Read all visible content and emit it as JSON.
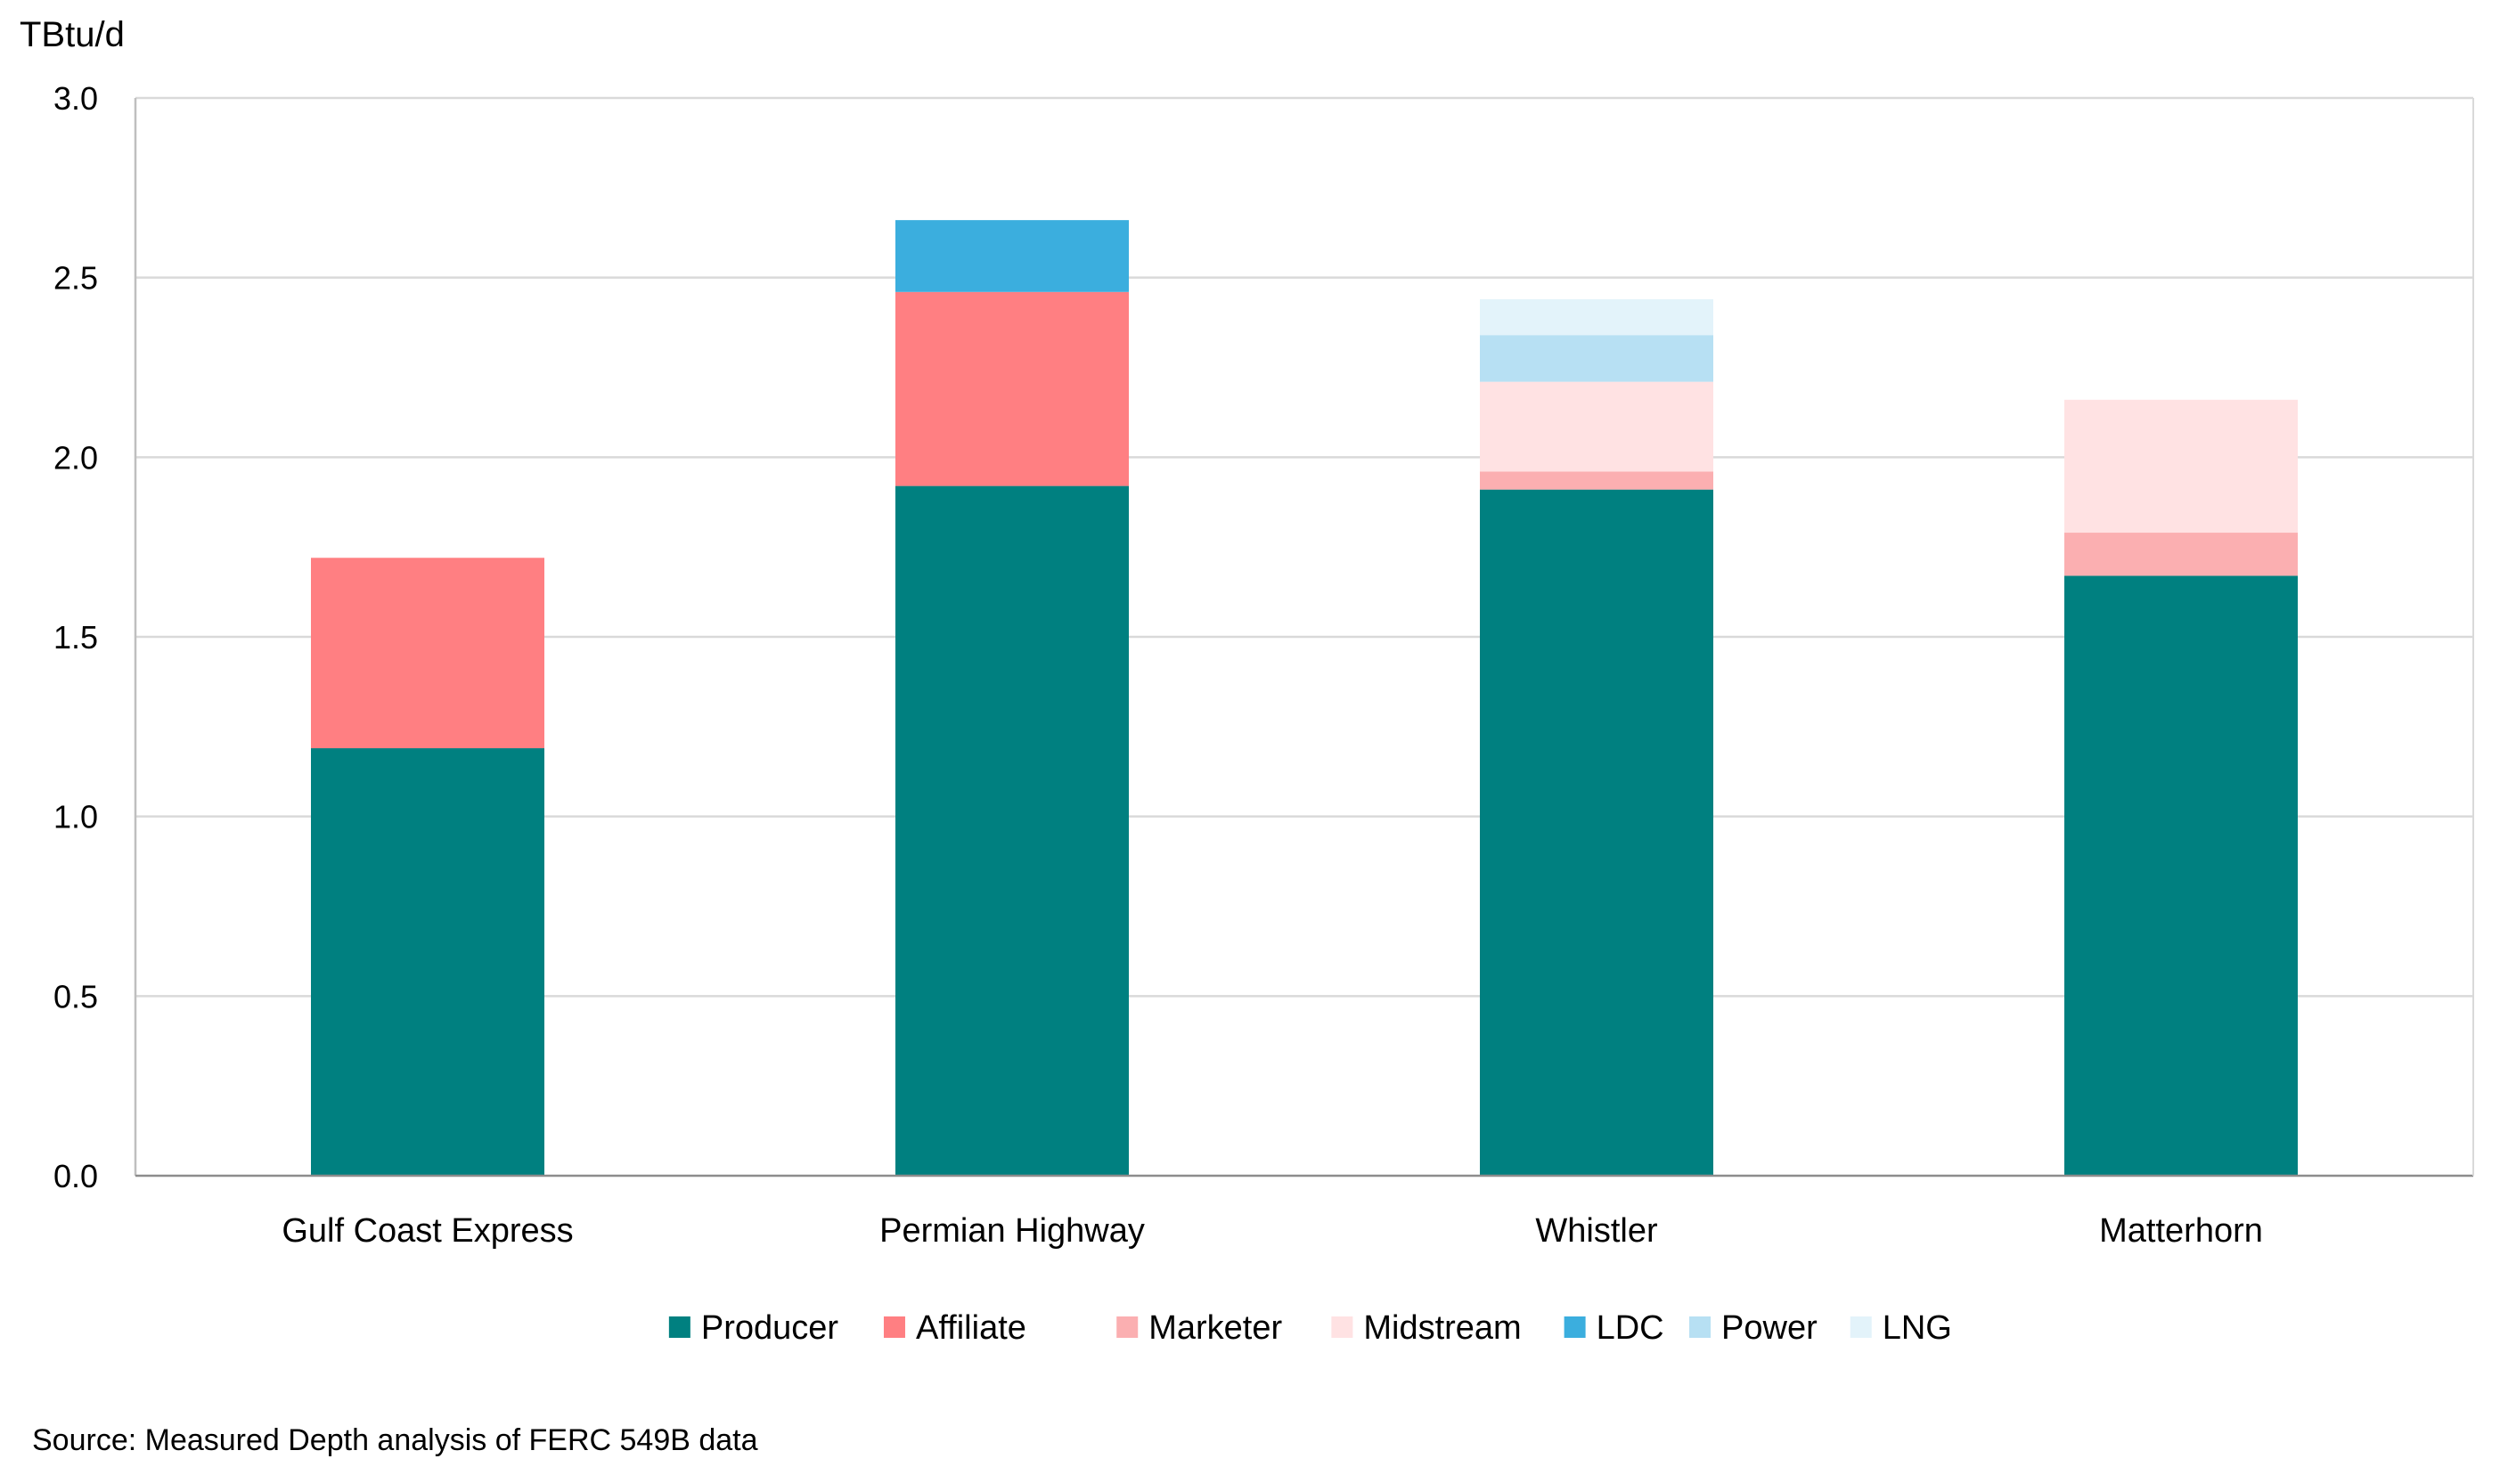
{
  "chart_data": {
    "type": "bar",
    "stacked": true,
    "title": "",
    "xlabel": "",
    "ylabel": "TBtu/d",
    "ylim": [
      0,
      3.0
    ],
    "yticks": [
      "0.0",
      "0.5",
      "1.0",
      "1.5",
      "2.0",
      "2.5",
      "3.0"
    ],
    "ytick_values": [
      0,
      0.5,
      1.0,
      1.5,
      2.0,
      2.5,
      3.0
    ],
    "categories": [
      "Gulf Coast Express",
      "Permian Highway",
      "Whistler",
      "Matterhorn"
    ],
    "grid": true,
    "legend_position": "bottom",
    "series": [
      {
        "name": "Producer",
        "color": "#008080",
        "values": [
          1.19,
          1.92,
          1.91,
          1.67
        ]
      },
      {
        "name": "Affiliate",
        "color": "#FF7F82",
        "values": [
          0.53,
          0.54,
          0.0,
          0.0
        ]
      },
      {
        "name": "Marketer",
        "color": "#FBAFB1",
        "values": [
          0.0,
          0.0,
          0.05,
          0.12
        ]
      },
      {
        "name": "Midstream",
        "color": "#FFE2E3",
        "values": [
          0.0,
          0.0,
          0.25,
          0.37
        ]
      },
      {
        "name": "LDC",
        "color": "#3BAEDE",
        "values": [
          0.0,
          0.2,
          0.0,
          0.0
        ]
      },
      {
        "name": "Power",
        "color": "#B7E0F3",
        "values": [
          0.0,
          0.0,
          0.13,
          0.0
        ]
      },
      {
        "name": "LNG",
        "color": "#E3F3FA",
        "values": [
          0.0,
          0.0,
          0.1,
          0.0
        ]
      }
    ],
    "source": "Source: Measured Depth analysis of FERC 549B data"
  }
}
